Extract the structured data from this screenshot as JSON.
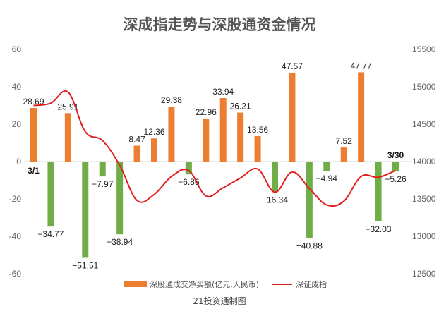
{
  "chart_data": {
    "type": "bar",
    "title": "深成指走势与深股通资金情况",
    "source": "21投资通制图",
    "colors": {
      "positive": "#ED7D31",
      "negative": "#70AD47",
      "line": "#E02020"
    },
    "y_left": {
      "min": -60,
      "max": 60,
      "ticks": [
        60,
        40,
        20,
        0,
        -20,
        -40,
        -60
      ]
    },
    "y_right": {
      "min": 12500,
      "max": 15500,
      "ticks": [
        15500,
        15000,
        14500,
        14000,
        13500,
        13000,
        12500
      ]
    },
    "date_labels": [
      "3/1",
      "3/30"
    ],
    "grid": false,
    "legend_position": "bottom",
    "series": [
      {
        "name": "深股通成交净买额(亿元,人民币)",
        "type": "bar",
        "values": [
          28.69,
          -34.77,
          25.91,
          -51.51,
          -7.97,
          -38.94,
          8.47,
          12.36,
          29.38,
          -6.86,
          22.96,
          33.94,
          26.21,
          13.56,
          -16.34,
          47.57,
          -40.88,
          -4.94,
          7.52,
          47.77,
          -32.03,
          -5.26
        ]
      },
      {
        "name": "深证成指",
        "type": "line",
        "values": [
          14750,
          14780,
          14930,
          14400,
          14280,
          13950,
          13480,
          13560,
          13800,
          13880,
          13540,
          13650,
          13780,
          13900,
          13590,
          13860,
          13640,
          13420,
          13470,
          13800,
          13790,
          13880
        ]
      }
    ]
  }
}
